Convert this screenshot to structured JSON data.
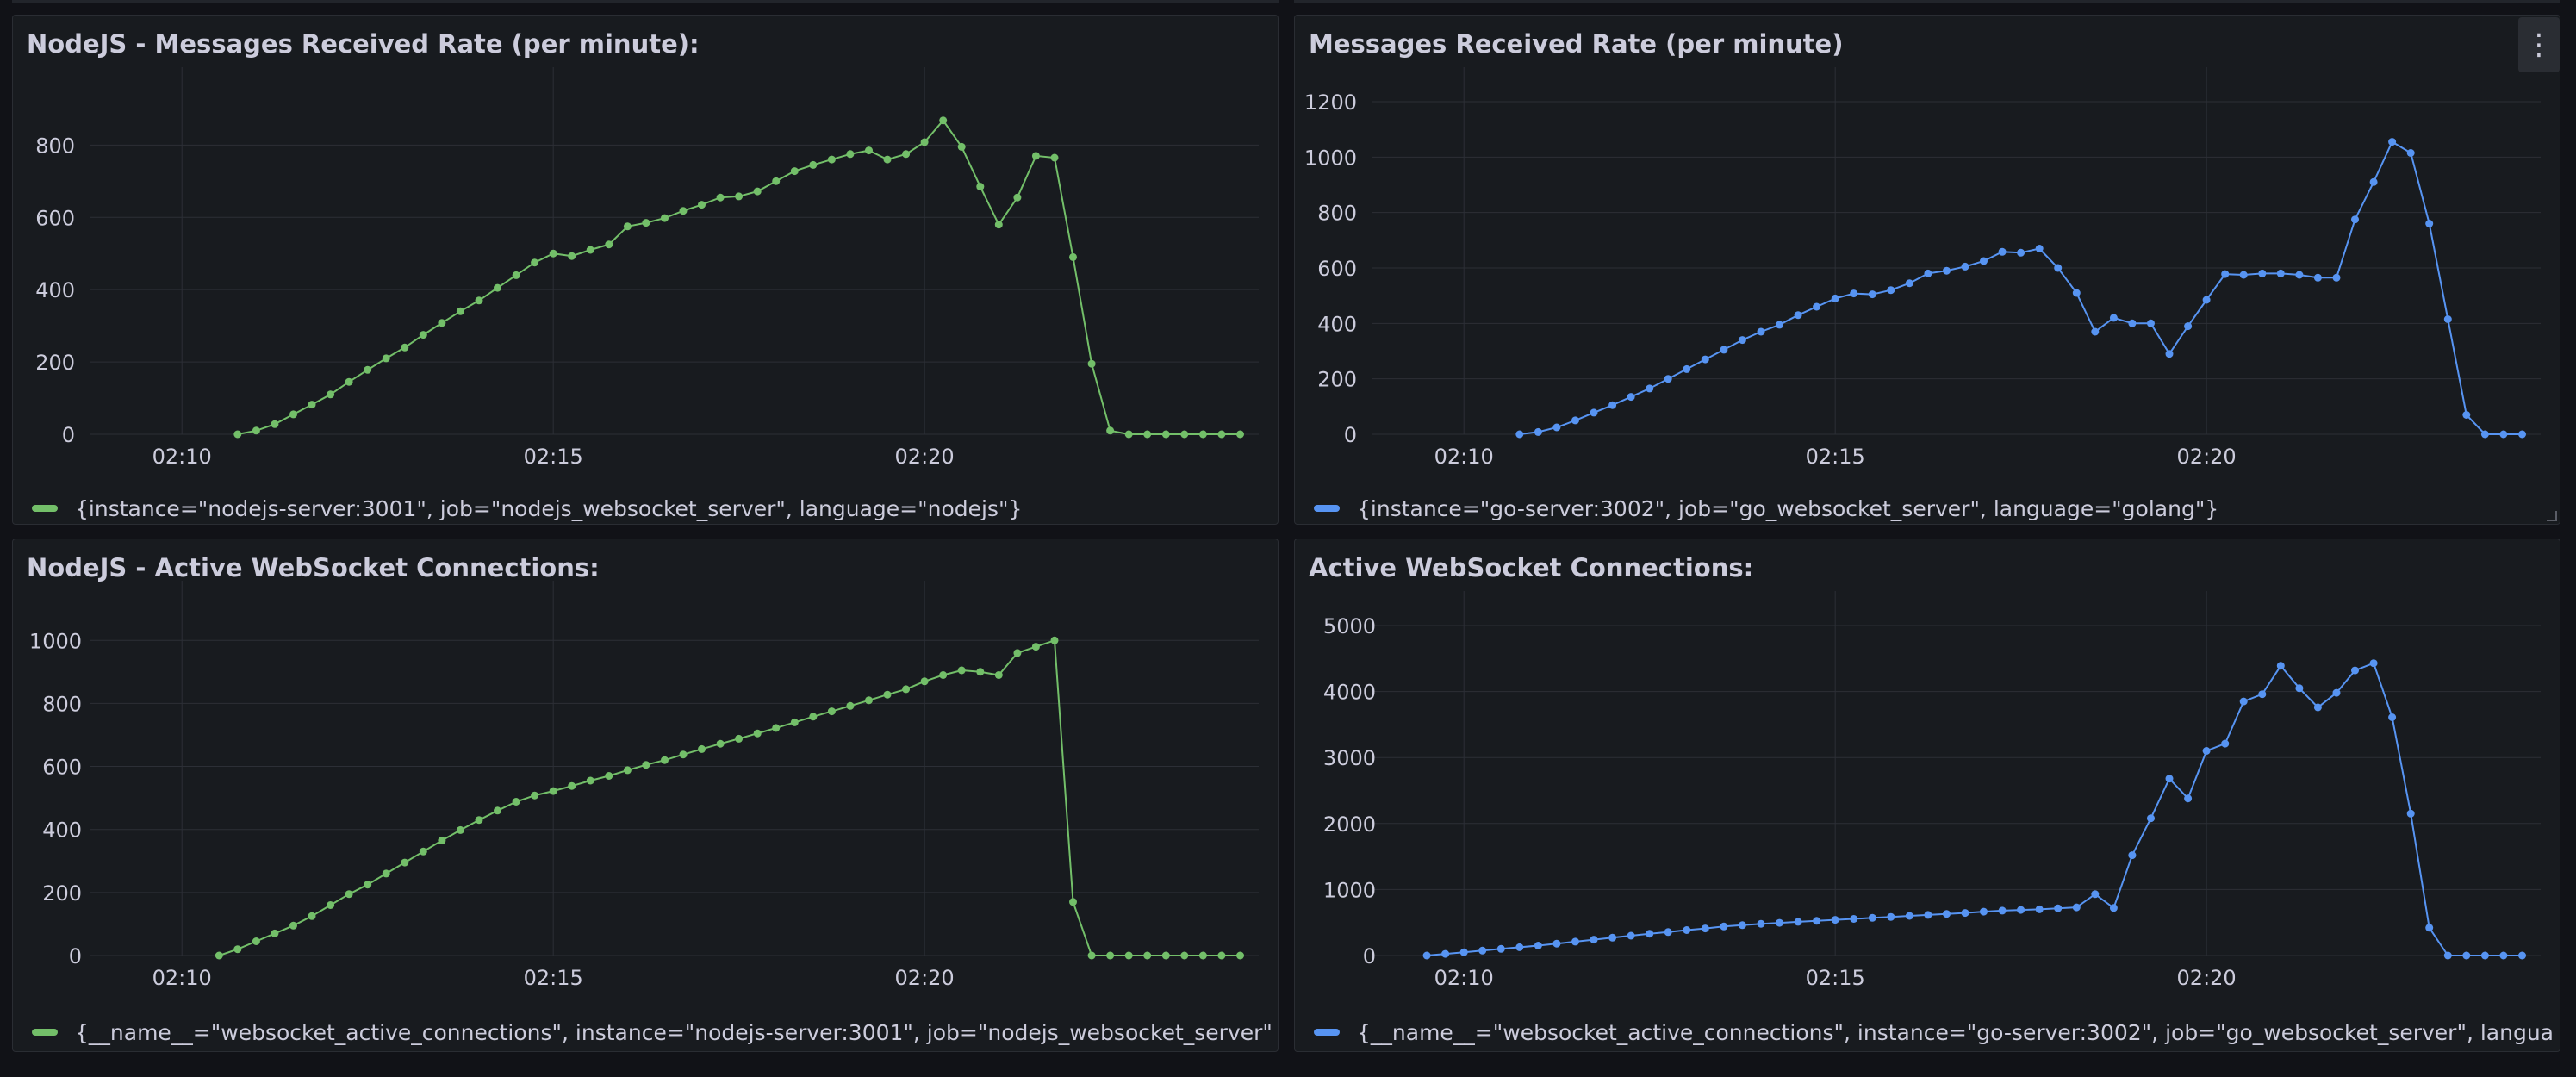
{
  "colors": {
    "background": "#111217",
    "panel": "#181b1f",
    "grid": "#2c2f36",
    "text": "#ccccdc",
    "nodejs_series": "#73bf69",
    "go_series": "#5794f2"
  },
  "time_ticks": [
    "02:10",
    "02:15",
    "02:20"
  ],
  "panels": [
    {
      "title": "NodeJS - Messages Received Rate (per minute):",
      "legend": "{instance=\"nodejs-server:3001\", job=\"nodejs_websocket_server\", language=\"nodejs\"}",
      "color": "#73bf69"
    },
    {
      "title": "Messages Received Rate (per minute)",
      "legend": "{instance=\"go-server:3002\", job=\"go_websocket_server\", language=\"golang\"}",
      "color": "#5794f2",
      "menu_icon": "kebab-menu-icon",
      "menu_glyph": "⋮"
    },
    {
      "title": "NodeJS - Active WebSocket Connections:",
      "legend": "{__name__=\"websocket_active_connections\", instance=\"nodejs-server:3001\", job=\"nodejs_websocket_server\", languag",
      "color": "#73bf69"
    },
    {
      "title": "Active WebSocket Connections:",
      "legend": "{__name__=\"websocket_active_connections\", instance=\"go-server:3002\", job=\"go_websocket_server\", language=\"gola",
      "color": "#5794f2"
    }
  ],
  "chart_data": [
    {
      "type": "line",
      "x_axis": "time",
      "x_ticks": [
        "02:10",
        "02:15",
        "02:20"
      ],
      "xlim": [
        "02:09:00",
        "02:24:30"
      ],
      "ylim": [
        0,
        920
      ],
      "y_ticks": [
        0,
        200,
        400,
        600,
        800
      ],
      "grid": true,
      "legend_position": "bottom-left",
      "series": [
        {
          "color": "#73bf69",
          "x": [
            "02:10:45",
            "02:11:00",
            "02:11:15",
            "02:11:30",
            "02:11:45",
            "02:12:00",
            "02:12:15",
            "02:12:30",
            "02:12:45",
            "02:13:00",
            "02:13:15",
            "02:13:30",
            "02:13:45",
            "02:14:00",
            "02:14:15",
            "02:14:30",
            "02:14:45",
            "02:15:00",
            "02:15:15",
            "02:15:30",
            "02:15:45",
            "02:16:00",
            "02:16:15",
            "02:16:30",
            "02:16:45",
            "02:17:00",
            "02:17:15",
            "02:17:30",
            "02:17:45",
            "02:18:00",
            "02:18:15",
            "02:18:30",
            "02:18:45",
            "02:19:00",
            "02:19:15",
            "02:19:30",
            "02:19:45",
            "02:20:00",
            "02:20:15",
            "02:20:30",
            "02:20:45",
            "02:21:00",
            "02:21:15",
            "02:21:30",
            "02:21:45",
            "02:22:00",
            "02:22:15",
            "02:22:30",
            "02:22:45",
            "02:23:00",
            "02:23:15",
            "02:23:30",
            "02:23:45",
            "02:24:00",
            "02:24:15"
          ],
          "values": [
            0,
            10,
            28,
            55,
            82,
            110,
            145,
            178,
            210,
            240,
            275,
            308,
            340,
            370,
            405,
            440,
            475,
            500,
            493,
            510,
            525,
            575,
            585,
            598,
            618,
            635,
            655,
            658,
            672,
            700,
            728,
            745,
            760,
            775,
            785,
            760,
            775,
            808,
            868,
            795,
            685,
            580,
            655,
            770,
            765,
            490,
            195,
            10,
            0,
            0,
            0,
            0,
            0,
            0,
            0
          ]
        }
      ]
    },
    {
      "type": "line",
      "x_axis": "time",
      "x_ticks": [
        "02:10",
        "02:15",
        "02:20"
      ],
      "xlim": [
        "02:09:00",
        "02:24:30"
      ],
      "ylim": [
        0,
        1200
      ],
      "y_ticks": [
        0,
        200,
        400,
        600,
        800,
        1000,
        1200
      ],
      "grid": true,
      "legend_position": "bottom-left",
      "series": [
        {
          "color": "#5794f2",
          "x": [
            "02:10:45",
            "02:11:00",
            "02:11:15",
            "02:11:30",
            "02:11:45",
            "02:12:00",
            "02:12:15",
            "02:12:30",
            "02:12:45",
            "02:13:00",
            "02:13:15",
            "02:13:30",
            "02:13:45",
            "02:14:00",
            "02:14:15",
            "02:14:30",
            "02:14:45",
            "02:15:00",
            "02:15:15",
            "02:15:30",
            "02:15:45",
            "02:16:00",
            "02:16:15",
            "02:16:30",
            "02:16:45",
            "02:17:00",
            "02:17:15",
            "02:17:30",
            "02:17:45",
            "02:18:00",
            "02:18:15",
            "02:18:30",
            "02:18:45",
            "02:19:00",
            "02:19:15",
            "02:19:30",
            "02:19:45",
            "02:20:00",
            "02:20:15",
            "02:20:30",
            "02:20:45",
            "02:21:00",
            "02:21:15",
            "02:21:30",
            "02:21:45",
            "02:22:00",
            "02:22:15",
            "02:22:30",
            "02:22:45",
            "02:23:00",
            "02:23:15",
            "02:23:30",
            "02:23:45",
            "02:24:00",
            "02:24:15"
          ],
          "values": [
            0,
            8,
            25,
            50,
            78,
            105,
            135,
            165,
            200,
            235,
            270,
            305,
            340,
            370,
            395,
            430,
            460,
            490,
            508,
            505,
            520,
            545,
            580,
            590,
            605,
            625,
            658,
            655,
            670,
            600,
            510,
            370,
            420,
            400,
            400,
            290,
            390,
            485,
            578,
            575,
            580,
            580,
            575,
            565,
            565,
            775,
            910,
            1055,
            1015,
            760,
            415,
            70,
            0,
            0,
            0
          ]
        }
      ]
    },
    {
      "type": "line",
      "x_axis": "time",
      "x_ticks": [
        "02:10",
        "02:15",
        "02:20"
      ],
      "xlim": [
        "02:09:00",
        "02:24:30"
      ],
      "ylim": [
        0,
        1080
      ],
      "y_ticks": [
        0,
        200,
        400,
        600,
        800,
        1000
      ],
      "grid": true,
      "legend_position": "bottom-left",
      "series": [
        {
          "color": "#73bf69",
          "x": [
            "02:10:30",
            "02:10:45",
            "02:11:00",
            "02:11:15",
            "02:11:30",
            "02:11:45",
            "02:12:00",
            "02:12:15",
            "02:12:30",
            "02:12:45",
            "02:13:00",
            "02:13:15",
            "02:13:30",
            "02:13:45",
            "02:14:00",
            "02:14:15",
            "02:14:30",
            "02:14:45",
            "02:15:00",
            "02:15:15",
            "02:15:30",
            "02:15:45",
            "02:16:00",
            "02:16:15",
            "02:16:30",
            "02:16:45",
            "02:17:00",
            "02:17:15",
            "02:17:30",
            "02:17:45",
            "02:18:00",
            "02:18:15",
            "02:18:30",
            "02:18:45",
            "02:19:00",
            "02:19:15",
            "02:19:30",
            "02:19:45",
            "02:20:00",
            "02:20:15",
            "02:20:30",
            "02:20:45",
            "02:21:00",
            "02:21:15",
            "02:21:30",
            "02:21:45",
            "02:22:00",
            "02:22:15",
            "02:22:30",
            "02:22:45",
            "02:23:00",
            "02:23:15",
            "02:23:30",
            "02:23:45",
            "02:24:00",
            "02:24:15"
          ],
          "values": [
            0,
            20,
            45,
            70,
            95,
            125,
            160,
            195,
            225,
            260,
            295,
            330,
            365,
            398,
            430,
            460,
            488,
            508,
            522,
            538,
            555,
            570,
            588,
            605,
            620,
            638,
            655,
            672,
            688,
            705,
            722,
            740,
            758,
            775,
            792,
            810,
            828,
            845,
            870,
            890,
            905,
            900,
            890,
            960,
            980,
            1000,
            170,
            0,
            0,
            0,
            0,
            0,
            0,
            0,
            0,
            0
          ]
        }
      ]
    },
    {
      "type": "line",
      "x_axis": "time",
      "x_ticks": [
        "02:10",
        "02:15",
        "02:20"
      ],
      "xlim": [
        "02:09:00",
        "02:24:30"
      ],
      "ylim": [
        0,
        5000
      ],
      "y_ticks": [
        0,
        1000,
        2000,
        3000,
        4000,
        5000
      ],
      "grid": true,
      "legend_position": "bottom-left",
      "series": [
        {
          "color": "#5794f2",
          "x": [
            "02:09:30",
            "02:09:45",
            "02:10:00",
            "02:10:15",
            "02:10:30",
            "02:10:45",
            "02:11:00",
            "02:11:15",
            "02:11:30",
            "02:11:45",
            "02:12:00",
            "02:12:15",
            "02:12:30",
            "02:12:45",
            "02:13:00",
            "02:13:15",
            "02:13:30",
            "02:13:45",
            "02:14:00",
            "02:14:15",
            "02:14:30",
            "02:14:45",
            "02:15:00",
            "02:15:15",
            "02:15:30",
            "02:15:45",
            "02:16:00",
            "02:16:15",
            "02:16:30",
            "02:16:45",
            "02:17:00",
            "02:17:15",
            "02:17:30",
            "02:17:45",
            "02:18:00",
            "02:18:15",
            "02:18:30",
            "02:18:45",
            "02:19:00",
            "02:19:15",
            "02:19:30",
            "02:19:45",
            "02:20:00",
            "02:20:15",
            "02:20:30",
            "02:20:45",
            "02:21:00",
            "02:21:15",
            "02:21:30",
            "02:21:45",
            "02:22:00",
            "02:22:15",
            "02:22:30",
            "02:22:45",
            "02:23:00",
            "02:23:15",
            "02:23:30",
            "02:23:45",
            "02:24:00",
            "02:24:15"
          ],
          "values": [
            0,
            25,
            50,
            75,
            100,
            125,
            150,
            180,
            210,
            240,
            270,
            300,
            330,
            355,
            385,
            410,
            440,
            460,
            480,
            495,
            510,
            525,
            540,
            555,
            570,
            585,
            600,
            615,
            630,
            645,
            665,
            680,
            690,
            700,
            715,
            730,
            930,
            720,
            1520,
            2080,
            2680,
            2380,
            3100,
            3210,
            3850,
            3960,
            4390,
            4050,
            3760,
            3980,
            4320,
            4430,
            3610,
            2150,
            420,
            0,
            0,
            0,
            0,
            0
          ]
        }
      ]
    }
  ]
}
